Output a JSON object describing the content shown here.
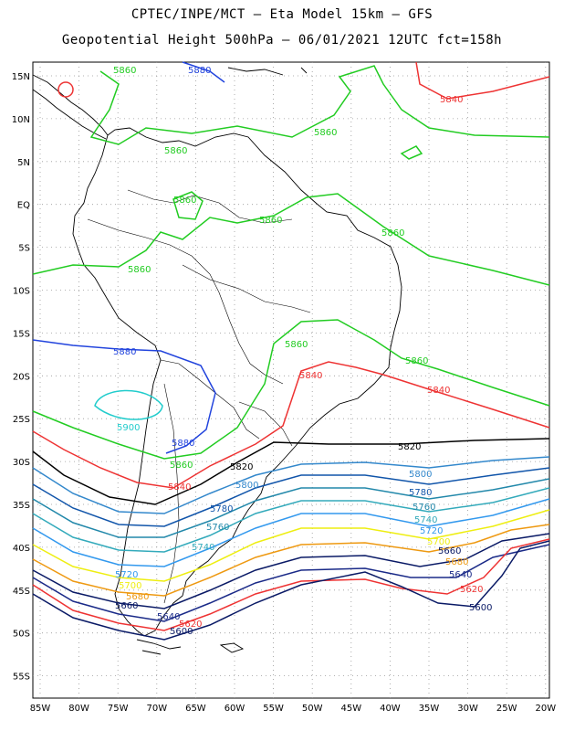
{
  "title": {
    "line1": "CPTEC/INPE/MCT –  Eta Model 15km – GFS",
    "line2": "Geopotential Height 500hPa – 06/01/2021 12UTC fct=158h"
  },
  "lat_labels": [
    "15N",
    "10N",
    "5N",
    "EQ",
    "5S",
    "10S",
    "15S",
    "20S",
    "25S",
    "30S",
    "35S",
    "40S",
    "45S",
    "50S",
    "55S"
  ],
  "lon_labels": [
    "85W",
    "80W",
    "75W",
    "70W",
    "65W",
    "60W",
    "55W",
    "50W",
    "45W",
    "40W",
    "35W",
    "30W",
    "25W",
    "20W"
  ],
  "contour_colors": {
    "5900": "#22cccc",
    "5880": "#2244dd",
    "5860": "#22cc22",
    "5840": "#ee3333",
    "5820": "#000000",
    "5800": "#3388cc",
    "5780": "#1155aa",
    "5760": "#2288aa",
    "5740": "#33aabb",
    "5720": "#3399ee",
    "5700": "#eeee11",
    "5680": "#ee9911",
    "5660": "#0a1a66",
    "5640": "#1a2a88",
    "5620": "#ee3333",
    "5600": "#0a1a66"
  },
  "contour_labels": [
    {
      "text": "5860",
      "color": "5860"
    },
    {
      "text": "5880",
      "color": "5880"
    },
    {
      "text": "5840",
      "color": "5840"
    },
    {
      "text": "5860",
      "color": "5860"
    },
    {
      "text": "5860",
      "color": "5860"
    },
    {
      "text": "5860",
      "color": "5860"
    },
    {
      "text": "5860",
      "color": "5860"
    },
    {
      "text": "5860",
      "color": "5860"
    },
    {
      "text": "5860",
      "color": "5860"
    },
    {
      "text": "5880",
      "color": "5880"
    },
    {
      "text": "5860",
      "color": "5860"
    },
    {
      "text": "5840",
      "color": "5840"
    },
    {
      "text": "5860",
      "color": "5860"
    },
    {
      "text": "5840",
      "color": "5840"
    },
    {
      "text": "5900",
      "color": "5900"
    },
    {
      "text": "5880",
      "color": "5880"
    },
    {
      "text": "5860",
      "color": "5860"
    },
    {
      "text": "5840",
      "color": "5840"
    },
    {
      "text": "5820",
      "color": "5820"
    },
    {
      "text": "5820",
      "color": "5820"
    },
    {
      "text": "5800",
      "color": "5800"
    },
    {
      "text": "5800",
      "color": "5800"
    },
    {
      "text": "5780",
      "color": "5780"
    },
    {
      "text": "5780",
      "color": "5780"
    },
    {
      "text": "5760",
      "color": "5760"
    },
    {
      "text": "5760",
      "color": "5760"
    },
    {
      "text": "5740",
      "color": "5740"
    },
    {
      "text": "5740",
      "color": "5740"
    },
    {
      "text": "5720",
      "color": "5720"
    },
    {
      "text": "5720",
      "color": "5720"
    },
    {
      "text": "5700",
      "color": "5700"
    },
    {
      "text": "5700",
      "color": "5700"
    },
    {
      "text": "5680",
      "color": "5680"
    },
    {
      "text": "5680",
      "color": "5680"
    },
    {
      "text": "5660",
      "color": "5660"
    },
    {
      "text": "5660",
      "color": "5660"
    },
    {
      "text": "5640",
      "color": "5640"
    },
    {
      "text": "5640",
      "color": "5640"
    },
    {
      "text": "5620",
      "color": "5620"
    },
    {
      "text": "5620",
      "color": "5620"
    },
    {
      "text": "5600",
      "color": "5600"
    },
    {
      "text": "5600",
      "color": "5600"
    }
  ]
}
